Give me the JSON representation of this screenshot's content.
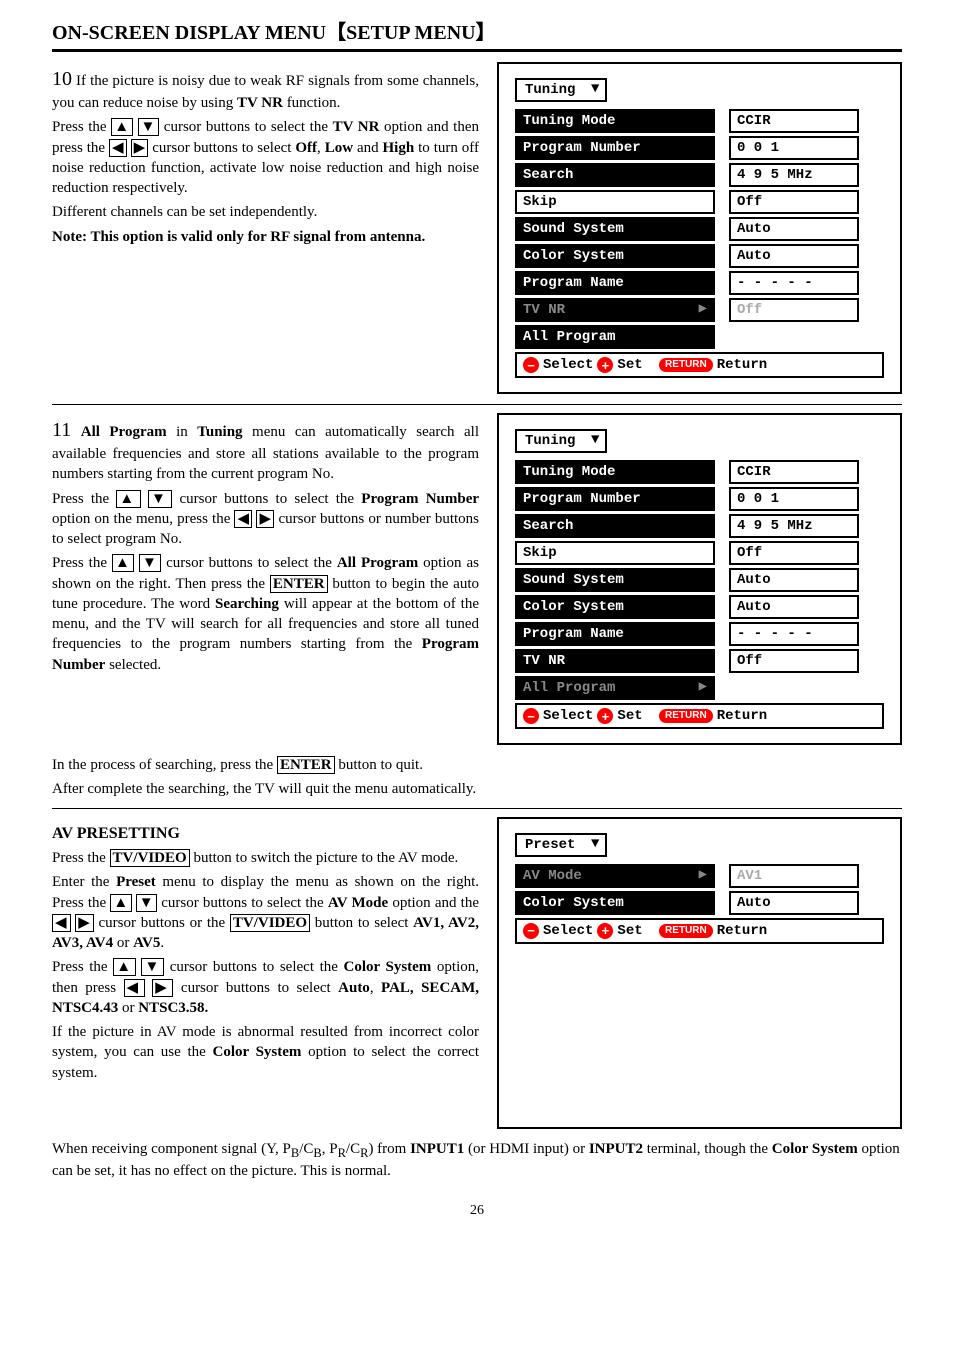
{
  "page_number": "26",
  "title": "ON-SCREEN DISPLAY MENU【SETUP MENU】",
  "step10": {
    "num": "10",
    "p1_a": "If the picture is noisy due to weak RF signals from some channels, you can reduce noise by using ",
    "p1_b": "TV NR",
    "p1_c": " function.",
    "p2_a": "Press the ",
    "p2_b": " cursor buttons to select the ",
    "p2_c": "TV NR",
    "p2_d": " option and then press the ",
    "p2_e": " cursor buttons to select ",
    "p2_f": "Off",
    "p2_g": ", ",
    "p2_h": "Low",
    "p2_i": " and ",
    "p2_j": "High",
    "p2_k": " to turn off noise reduction function, activate low noise reduction and high noise reduction respectively.",
    "p3": "Different channels can be set independently.",
    "p4_a": "Note: This option is valid only for RF signal from antenna."
  },
  "step11": {
    "num": "11",
    "p1_a": "All Program",
    "p1_b": " in ",
    "p1_c": "Tuning",
    "p1_d": " menu can automatically search all available frequencies and store all stations available to the program numbers starting from the current program No.",
    "p2_a": "Press the ",
    "p2_b": " cursor buttons to select the ",
    "p2_c": "Program Number",
    "p2_d": " option on the menu, press the ",
    "p2_e": " cursor buttons or number buttons to select program No.",
    "p3_a": "Press the ",
    "p3_b": " cursor buttons to select the ",
    "p3_c": "All Program",
    "p3_d": " option as shown on the right. Then press the ",
    "p3_e": "ENTER",
    "p3_f": " button to begin the auto tune procedure. The word ",
    "p3_g": "Searching",
    "p3_h": " will appear at the bottom of the menu, and the TV will search for all frequencies and store all tuned frequencies to the program numbers starting from the ",
    "p3_i": "Program Number",
    "p3_j": " selected.",
    "p4_a": "In the process of searching, press the ",
    "p4_b": "ENTER",
    "p4_c": " button to quit.",
    "p5": "After complete the searching, the TV will quit the menu automatically."
  },
  "avpreset": {
    "head": "AV PRESETTING",
    "p1_a": "Press the ",
    "p1_b": "TV/VIDEO",
    "p1_c": " button to switch the picture to the AV mode.",
    "p2_a": "Enter the ",
    "p2_b": "Preset",
    "p2_c": " menu to display the menu as shown on the right. Press the ",
    "p2_d": " cursor buttons to select the ",
    "p2_e": "AV Mode",
    "p2_f": " option and the ",
    "p2_g": " cursor buttons or the ",
    "p2_h": "TV/VIDEO",
    "p2_i": " button to select ",
    "p2_list": "AV1, AV2, AV3, AV4",
    "p2_j": " or ",
    "p2_k": "AV5",
    "p2_l": ".",
    "p3_a": "Press the ",
    "p3_b": " cursor buttons to select the ",
    "p3_c": "Color System",
    "p3_d": " option, then press ",
    "p3_e": " cursor buttons to select ",
    "p3_f": "Auto",
    "p3_g": ", ",
    "p3_list": "PAL, SECAM, NTSC4.43",
    "p3_h": " or ",
    "p3_i": "NTSC3.58.",
    "p4_a": "If the picture in AV mode is abnormal resulted from incorrect color system, you can use the ",
    "p4_b": "Color System",
    "p4_c": " option to select the correct system.",
    "p5_a": "When receiving component signal (Y, P",
    "p5_sub1": "B",
    "p5_b": "/C",
    "p5_sub2": "B",
    "p5_c": ", P",
    "p5_sub3": "R",
    "p5_d": "/C",
    "p5_sub4": "R",
    "p5_e": ") from ",
    "p5_f": "INPUT1",
    "p5_g": " (or HDMI input) or ",
    "p5_h": "INPUT2",
    "p5_i": " terminal, though the ",
    "p5_j": "Color System",
    "p5_k": " option can be set, it has no effect on the picture. This is normal."
  },
  "osd1": {
    "title": "Tuning",
    "rows": [
      {
        "label": "Tuning Mode",
        "value": "CCIR",
        "style": "black"
      },
      {
        "label": "Program Number",
        "value": "0 0 1",
        "style": "black"
      },
      {
        "label": "Search",
        "value": "4 9 5 MHz",
        "style": "black"
      },
      {
        "label": "Skip",
        "value": "Off",
        "style": "white"
      },
      {
        "label": "Sound System",
        "value": "Auto",
        "style": "black"
      },
      {
        "label": "Color System",
        "value": "Auto",
        "style": "black"
      },
      {
        "label": "Program Name",
        "value": "- - - - -",
        "style": "black"
      },
      {
        "label": "TV NR",
        "value": "Off",
        "style": "pale",
        "arrow": true,
        "valstyle": "pale"
      },
      {
        "label": "All Program",
        "value": "",
        "style": "black",
        "noval": true
      }
    ],
    "footer": {
      "select": "Select",
      "set": "Set",
      "return_pill": "RETURN",
      "return": "Return"
    }
  },
  "osd2": {
    "title": "Tuning",
    "rows": [
      {
        "label": "Tuning Mode",
        "value": "CCIR",
        "style": "black"
      },
      {
        "label": "Program Number",
        "value": "0 0 1",
        "style": "black"
      },
      {
        "label": "Search",
        "value": "4 9 5 MHz",
        "style": "black"
      },
      {
        "label": "Skip",
        "value": "Off",
        "style": "white"
      },
      {
        "label": "Sound System",
        "value": "Auto",
        "style": "black"
      },
      {
        "label": "Color System",
        "value": "Auto",
        "style": "black"
      },
      {
        "label": "Program Name",
        "value": "- - - - -",
        "style": "black"
      },
      {
        "label": "TV NR",
        "value": "Off",
        "style": "black"
      },
      {
        "label": "All Program",
        "value": "",
        "style": "pale",
        "arrow": true,
        "noval": true
      }
    ],
    "footer": {
      "select": "Select",
      "set": "Set",
      "return_pill": "RETURN",
      "return": "Return"
    }
  },
  "osd3": {
    "title": "Preset",
    "rows": [
      {
        "label": "AV Mode",
        "value": "AV1",
        "style": "pale",
        "arrow": true,
        "valstyle": "pale"
      },
      {
        "label": "Color System",
        "value": "Auto",
        "style": "black"
      }
    ],
    "footer": {
      "select": "Select",
      "set": "Set",
      "return_pill": "RETURN",
      "return": "Return"
    }
  },
  "arrows": {
    "up": "▲",
    "down": "▼",
    "left": "◀",
    "right": "▶"
  }
}
